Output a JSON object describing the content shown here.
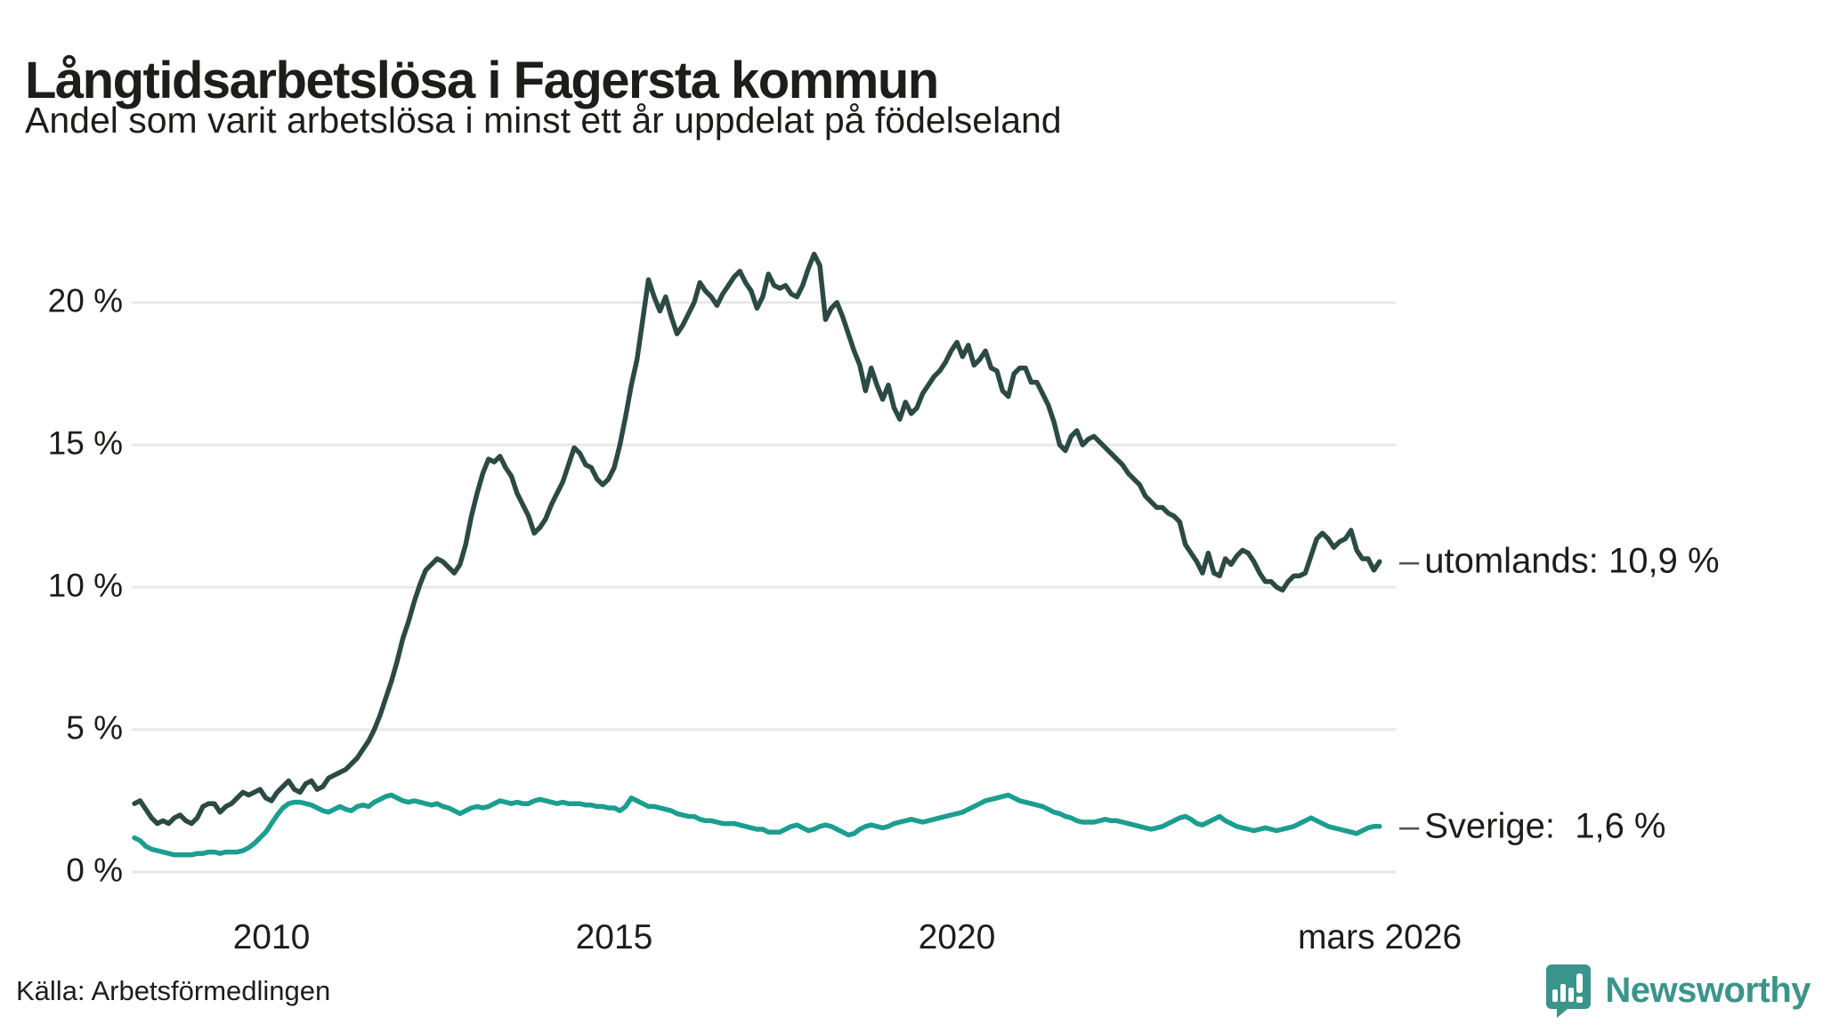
{
  "header": {
    "title": "Långtidsarbetslösa i Fagersta kommun",
    "subtitle": "Andel som varit arbetslösa i minst ett år uppdelat på födelseland"
  },
  "footer": {
    "source": "Källa: Arbetsförmedlingen",
    "brand": "Newsworthy"
  },
  "colors": {
    "utomlands_line": "#2c4a44",
    "sverige_line": "#1b9e8f",
    "grid": "#e8e8eb",
    "text": "#1d1d1b",
    "brand_teal": "#3b948b",
    "end_label_dash": "#555555"
  },
  "chart_data": {
    "type": "line",
    "title": "Långtidsarbetslösa i Fagersta kommun",
    "subtitle": "Andel som varit arbetslösa i minst ett år uppdelat på födelseland",
    "unit": "%",
    "grid": true,
    "legend_position": "end-of-line-labels",
    "start_year": 2008,
    "points_per_year": 12,
    "end_period": "mars 2026",
    "ylim": [
      0,
      21.7
    ],
    "y_ticks": [
      {
        "value": 0,
        "label": "0 %"
      },
      {
        "value": 5,
        "label": "5 %"
      },
      {
        "value": 10,
        "label": "10 %"
      },
      {
        "value": 15,
        "label": "15 %"
      },
      {
        "value": 20,
        "label": "20 %"
      }
    ],
    "x_ticks": [
      {
        "year": 2010,
        "label": "2010"
      },
      {
        "year": 2015,
        "label": "2015"
      },
      {
        "year": 2020,
        "label": "2020"
      },
      {
        "year": 2026.17,
        "label": "mars 2026"
      }
    ],
    "series": [
      {
        "name": "utomlands",
        "end_label": "utomlands: 10,9 %",
        "last_value_text": "10,9 %",
        "color": "#2c4a44",
        "values": [
          2.4,
          2.5,
          2.2,
          1.9,
          1.7,
          1.8,
          1.7,
          1.9,
          2.0,
          1.8,
          1.7,
          1.9,
          2.3,
          2.4,
          2.4,
          2.1,
          2.3,
          2.4,
          2.6,
          2.8,
          2.7,
          2.8,
          2.9,
          2.6,
          2.5,
          2.8,
          3.0,
          3.2,
          2.9,
          2.8,
          3.1,
          3.2,
          2.9,
          3.0,
          3.3,
          3.4,
          3.5,
          3.6,
          3.8,
          4.0,
          4.3,
          4.6,
          5.0,
          5.5,
          6.1,
          6.7,
          7.4,
          8.2,
          8.8,
          9.5,
          10.1,
          10.6,
          10.8,
          11.0,
          10.9,
          10.7,
          10.5,
          10.8,
          11.5,
          12.5,
          13.3,
          14.0,
          14.5,
          14.4,
          14.6,
          14.2,
          13.9,
          13.3,
          12.9,
          12.5,
          11.9,
          12.1,
          12.4,
          12.9,
          13.3,
          13.7,
          14.3,
          14.9,
          14.7,
          14.3,
          14.2,
          13.8,
          13.6,
          13.8,
          14.2,
          15.0,
          16.0,
          17.1,
          18.0,
          19.4,
          20.8,
          20.2,
          19.7,
          20.2,
          19.5,
          18.9,
          19.2,
          19.6,
          20.0,
          20.7,
          20.4,
          20.2,
          19.9,
          20.3,
          20.6,
          20.9,
          21.1,
          20.7,
          20.4,
          19.8,
          20.2,
          21.0,
          20.6,
          20.5,
          20.6,
          20.3,
          20.2,
          20.6,
          21.2,
          21.7,
          21.3,
          19.4,
          19.8,
          20.0,
          19.5,
          18.9,
          18.3,
          17.8,
          16.9,
          17.7,
          17.1,
          16.6,
          17.1,
          16.3,
          15.9,
          16.5,
          16.1,
          16.3,
          16.8,
          17.1,
          17.4,
          17.6,
          17.9,
          18.3,
          18.6,
          18.1,
          18.5,
          17.8,
          18.0,
          18.3,
          17.7,
          17.6,
          16.9,
          16.7,
          17.5,
          17.7,
          17.7,
          17.2,
          17.2,
          16.8,
          16.4,
          15.8,
          15.0,
          14.8,
          15.3,
          15.5,
          15.0,
          15.2,
          15.3,
          15.1,
          14.9,
          14.7,
          14.5,
          14.3,
          14.0,
          13.8,
          13.6,
          13.2,
          13.0,
          12.8,
          12.8,
          12.6,
          12.5,
          12.3,
          11.5,
          11.2,
          10.9,
          10.5,
          11.2,
          10.5,
          10.4,
          11.0,
          10.8,
          11.1,
          11.3,
          11.2,
          10.9,
          10.5,
          10.2,
          10.2,
          10.0,
          9.9,
          10.2,
          10.4,
          10.4,
          10.5,
          11.1,
          11.7,
          11.9,
          11.7,
          11.4,
          11.6,
          11.7,
          12.0,
          11.3,
          11.0,
          11.0,
          10.6,
          10.9
        ]
      },
      {
        "name": "Sverige",
        "end_label": "Sverige:  1,6 %",
        "last_value_text": "1,6 %",
        "color": "#1b9e8f",
        "values": [
          1.2,
          1.1,
          0.9,
          0.8,
          0.75,
          0.7,
          0.65,
          0.6,
          0.6,
          0.6,
          0.6,
          0.65,
          0.65,
          0.7,
          0.7,
          0.65,
          0.7,
          0.7,
          0.7,
          0.75,
          0.85,
          1.0,
          1.2,
          1.4,
          1.7,
          2.0,
          2.25,
          2.4,
          2.45,
          2.45,
          2.4,
          2.35,
          2.25,
          2.15,
          2.1,
          2.2,
          2.3,
          2.2,
          2.15,
          2.3,
          2.35,
          2.3,
          2.45,
          2.55,
          2.65,
          2.7,
          2.6,
          2.5,
          2.45,
          2.5,
          2.45,
          2.4,
          2.35,
          2.4,
          2.3,
          2.25,
          2.15,
          2.05,
          2.15,
          2.25,
          2.3,
          2.25,
          2.3,
          2.4,
          2.5,
          2.45,
          2.4,
          2.45,
          2.4,
          2.4,
          2.5,
          2.55,
          2.5,
          2.45,
          2.4,
          2.45,
          2.4,
          2.4,
          2.4,
          2.35,
          2.35,
          2.3,
          2.3,
          2.25,
          2.25,
          2.15,
          2.3,
          2.6,
          2.5,
          2.4,
          2.3,
          2.3,
          2.25,
          2.2,
          2.15,
          2.05,
          2.0,
          1.95,
          1.95,
          1.85,
          1.8,
          1.8,
          1.75,
          1.7,
          1.7,
          1.7,
          1.65,
          1.6,
          1.55,
          1.5,
          1.5,
          1.4,
          1.4,
          1.4,
          1.5,
          1.6,
          1.65,
          1.55,
          1.45,
          1.5,
          1.6,
          1.65,
          1.6,
          1.5,
          1.4,
          1.3,
          1.35,
          1.5,
          1.6,
          1.65,
          1.6,
          1.55,
          1.6,
          1.7,
          1.75,
          1.8,
          1.85,
          1.8,
          1.75,
          1.8,
          1.85,
          1.9,
          1.95,
          2.0,
          2.05,
          2.1,
          2.2,
          2.3,
          2.4,
          2.5,
          2.55,
          2.6,
          2.65,
          2.7,
          2.6,
          2.5,
          2.45,
          2.4,
          2.35,
          2.3,
          2.2,
          2.1,
          2.05,
          1.95,
          1.9,
          1.8,
          1.75,
          1.75,
          1.75,
          1.8,
          1.85,
          1.8,
          1.8,
          1.75,
          1.7,
          1.65,
          1.6,
          1.55,
          1.5,
          1.55,
          1.6,
          1.7,
          1.8,
          1.9,
          1.95,
          1.85,
          1.7,
          1.65,
          1.75,
          1.85,
          1.95,
          1.8,
          1.7,
          1.6,
          1.55,
          1.5,
          1.45,
          1.5,
          1.55,
          1.5,
          1.45,
          1.5,
          1.55,
          1.6,
          1.7,
          1.8,
          1.9,
          1.8,
          1.7,
          1.6,
          1.55,
          1.5,
          1.45,
          1.4,
          1.35,
          1.45,
          1.55,
          1.6,
          1.6
        ]
      }
    ]
  }
}
